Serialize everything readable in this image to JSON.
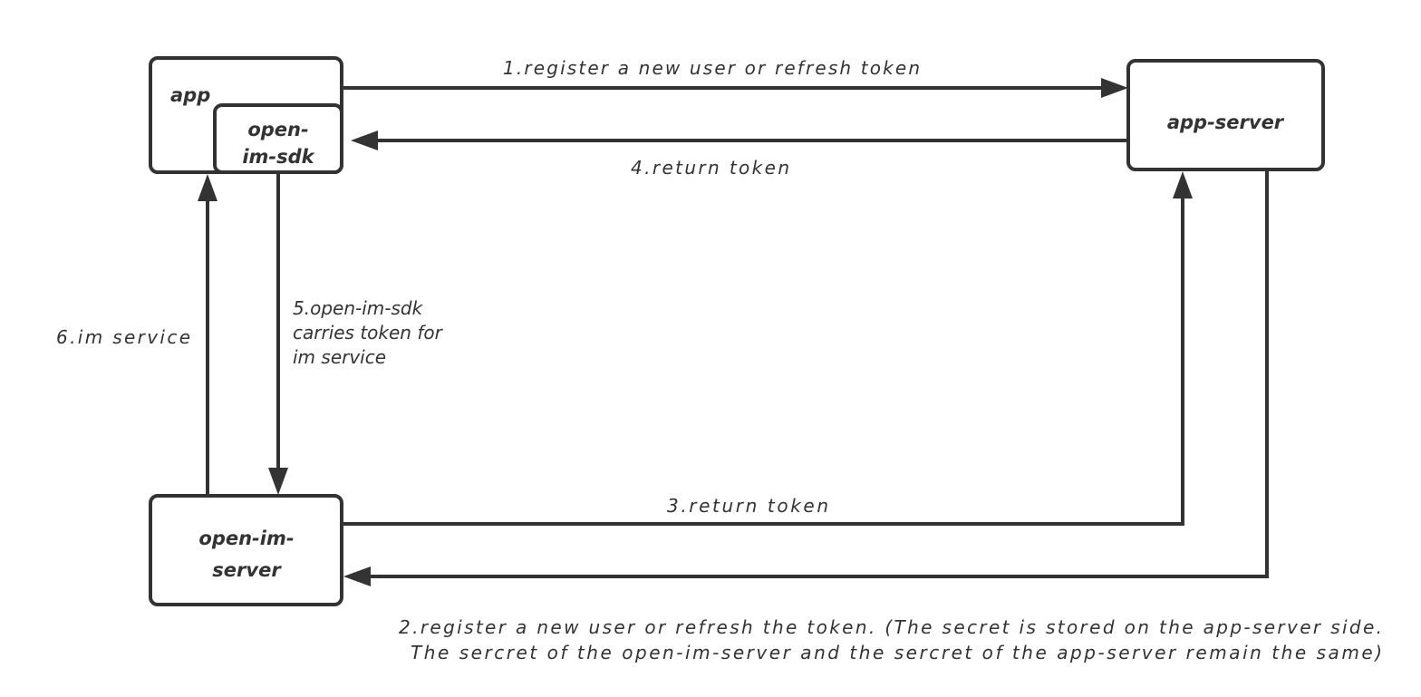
{
  "nodes": {
    "app": "app",
    "sdk": [
      "open-",
      "im-sdk"
    ],
    "app_server": "app-server",
    "im_server": [
      "open-im-",
      "server"
    ]
  },
  "edges": {
    "e1": "1.register a new user or refresh token",
    "e2": [
      "2.register a new user or refresh the token. (The secret is stored on the app-server side.",
      "The sercret of the open-im-server and the sercret of the app-server remain the same)"
    ],
    "e3": "3.return token",
    "e4": "4.return token",
    "e5": [
      "5.open-im-sdk",
      "carries token for",
      "im service"
    ],
    "e6": "6.im service"
  },
  "colors": {
    "stroke": "#333333",
    "background": "#ffffff"
  }
}
